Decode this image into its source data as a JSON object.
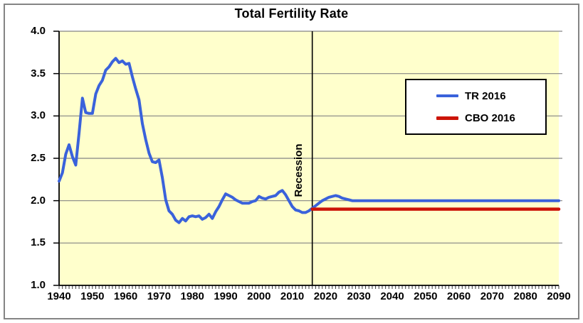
{
  "title": "Total Fertility Rate",
  "annotation": {
    "label": "Recession",
    "year": 2016
  },
  "legend": {
    "items": [
      {
        "label": "TR 2016",
        "color": "#3a62db"
      },
      {
        "label": "CBO 2016",
        "color": "#cc1407"
      }
    ]
  },
  "colors": {
    "plot_background": "#ffffcc",
    "gridline": "#848484",
    "axis": "#000000",
    "tick": "#3a3a3a",
    "frame_border": "#848484",
    "tr_line": "#3a62db",
    "cbo_line": "#cc1407",
    "vline": "#000000"
  },
  "chart_data": {
    "type": "line",
    "title": "Total Fertility Rate",
    "xlabel": "",
    "ylabel": "",
    "xlim": [
      1940,
      2090
    ],
    "ylim": [
      1.0,
      4.0
    ],
    "x_ticks": [
      1940,
      1950,
      1960,
      1970,
      1980,
      1990,
      2000,
      2010,
      2020,
      2030,
      2040,
      2050,
      2060,
      2070,
      2080,
      2090
    ],
    "x_minor_tick_step": 1,
    "y_ticks": [
      1.0,
      1.5,
      2.0,
      2.5,
      3.0,
      3.5,
      4.0
    ],
    "y_tick_labels": [
      "1.0",
      "1.5",
      "2.0",
      "2.5",
      "3.0",
      "3.5",
      "4.0"
    ],
    "grid": true,
    "legend_position": "upper right",
    "vline": {
      "x": 2016,
      "label": "Recession"
    },
    "series": [
      {
        "name": "TR 2016",
        "color": "#3a62db",
        "stroke_width": 4,
        "points": [
          [
            1940,
            2.23
          ],
          [
            1941,
            2.33
          ],
          [
            1942,
            2.55
          ],
          [
            1943,
            2.66
          ],
          [
            1944,
            2.52
          ],
          [
            1945,
            2.42
          ],
          [
            1946,
            2.8
          ],
          [
            1947,
            3.21
          ],
          [
            1948,
            3.04
          ],
          [
            1949,
            3.03
          ],
          [
            1950,
            3.03
          ],
          [
            1951,
            3.26
          ],
          [
            1952,
            3.36
          ],
          [
            1953,
            3.42
          ],
          [
            1954,
            3.54
          ],
          [
            1955,
            3.58
          ],
          [
            1956,
            3.64
          ],
          [
            1957,
            3.68
          ],
          [
            1958,
            3.63
          ],
          [
            1959,
            3.65
          ],
          [
            1960,
            3.61
          ],
          [
            1961,
            3.62
          ],
          [
            1962,
            3.46
          ],
          [
            1963,
            3.32
          ],
          [
            1964,
            3.19
          ],
          [
            1965,
            2.91
          ],
          [
            1966,
            2.72
          ],
          [
            1967,
            2.56
          ],
          [
            1968,
            2.46
          ],
          [
            1969,
            2.45
          ],
          [
            1970,
            2.48
          ],
          [
            1971,
            2.27
          ],
          [
            1972,
            2.01
          ],
          [
            1973,
            1.88
          ],
          [
            1974,
            1.84
          ],
          [
            1975,
            1.77
          ],
          [
            1976,
            1.74
          ],
          [
            1977,
            1.79
          ],
          [
            1978,
            1.76
          ],
          [
            1979,
            1.81
          ],
          [
            1980,
            1.82
          ],
          [
            1981,
            1.81
          ],
          [
            1982,
            1.82
          ],
          [
            1983,
            1.78
          ],
          [
            1984,
            1.8
          ],
          [
            1985,
            1.84
          ],
          [
            1986,
            1.79
          ],
          [
            1987,
            1.87
          ],
          [
            1988,
            1.93
          ],
          [
            1989,
            2.01
          ],
          [
            1990,
            2.08
          ],
          [
            1991,
            2.06
          ],
          [
            1992,
            2.04
          ],
          [
            1993,
            2.01
          ],
          [
            1994,
            1.99
          ],
          [
            1995,
            1.97
          ],
          [
            1996,
            1.97
          ],
          [
            1997,
            1.97
          ],
          [
            1998,
            1.99
          ],
          [
            1999,
            2.0
          ],
          [
            2000,
            2.05
          ],
          [
            2001,
            2.03
          ],
          [
            2002,
            2.02
          ],
          [
            2003,
            2.04
          ],
          [
            2004,
            2.05
          ],
          [
            2005,
            2.06
          ],
          [
            2006,
            2.1
          ],
          [
            2007,
            2.12
          ],
          [
            2008,
            2.07
          ],
          [
            2009,
            2.0
          ],
          [
            2010,
            1.93
          ],
          [
            2011,
            1.89
          ],
          [
            2012,
            1.88
          ],
          [
            2013,
            1.86
          ],
          [
            2014,
            1.86
          ],
          [
            2015,
            1.88
          ],
          [
            2016,
            1.91
          ],
          [
            2017,
            1.94
          ],
          [
            2018,
            1.97
          ],
          [
            2019,
            2.0
          ],
          [
            2020,
            2.02
          ],
          [
            2021,
            2.04
          ],
          [
            2022,
            2.05
          ],
          [
            2023,
            2.06
          ],
          [
            2024,
            2.05
          ],
          [
            2025,
            2.03
          ],
          [
            2026,
            2.02
          ],
          [
            2027,
            2.01
          ],
          [
            2028,
            2.0
          ],
          [
            2090,
            2.0
          ]
        ]
      },
      {
        "name": "CBO 2016",
        "color": "#cc1407",
        "stroke_width": 4.5,
        "points": [
          [
            2016,
            1.9
          ],
          [
            2090,
            1.9
          ]
        ]
      }
    ]
  }
}
